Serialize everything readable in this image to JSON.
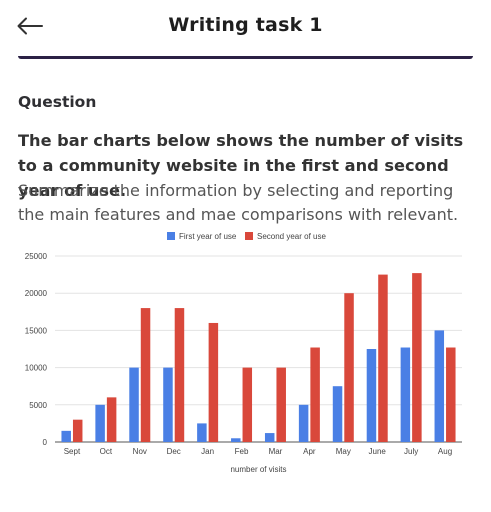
{
  "header": {
    "back_icon": "arrow-left-icon",
    "title": "Writing task 1"
  },
  "section": {
    "label": "Question"
  },
  "question": {
    "bold_text": "The bar charts below shows the number of visits to a community website in the first and second year of use.",
    "normal_text": "Summarize the information by selecting and reporting the main features and mae comparisons with relevant."
  },
  "chart_data": {
    "type": "bar",
    "categories": [
      "Sept",
      "Oct",
      "Nov",
      "Dec",
      "Jan",
      "Feb",
      "Mar",
      "Apr",
      "May",
      "June",
      "July",
      "Aug"
    ],
    "series": [
      {
        "name": "First year of use",
        "color": "#4a7fe5",
        "values": [
          1500,
          5000,
          10000,
          10000,
          2500,
          500,
          1200,
          5000,
          7500,
          12500,
          12700,
          15000
        ]
      },
      {
        "name": "Second year of use",
        "color": "#d9483b",
        "values": [
          3000,
          6000,
          18000,
          18000,
          16000,
          10000,
          10000,
          12700,
          20000,
          22500,
          22700,
          12700
        ]
      }
    ],
    "xlabel": "number of visits",
    "ylabel": "",
    "ylim": [
      0,
      25000
    ],
    "yticks": [
      0,
      5000,
      10000,
      15000,
      20000,
      25000
    ],
    "grid": true,
    "legend": "top-center"
  }
}
